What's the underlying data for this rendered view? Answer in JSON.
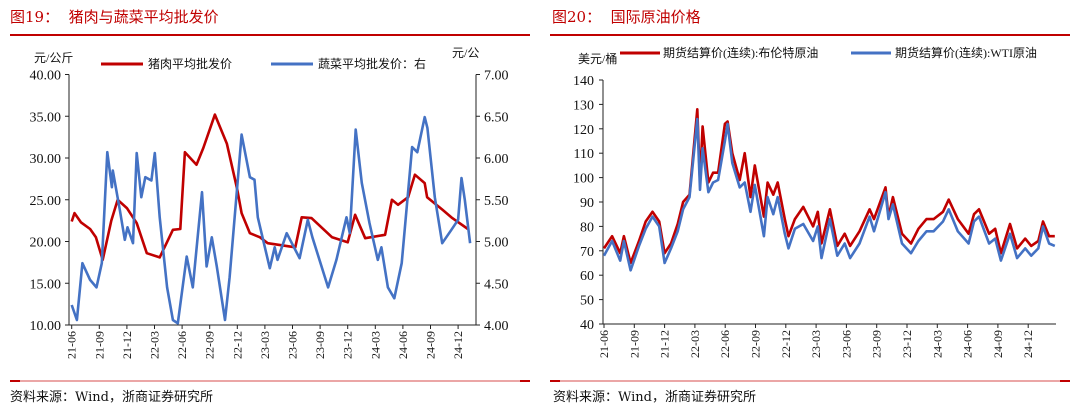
{
  "figures": [
    {
      "title": "图19：  猪肉与蔬菜平均批发价",
      "source": "资料来源：Wind，浙商证券研究所"
    },
    {
      "title": "图20：  国际原油价格",
      "source": "资料来源：Wind，浙商证券研究所"
    }
  ],
  "colors": {
    "title": "#C00000",
    "red_series": "#C00000",
    "blue_series": "#4472C4"
  },
  "chart_data": [
    {
      "type": "line",
      "title": "猪肉与蔬菜平均批发价",
      "ylabel_left": "元/公斤",
      "ylabel_right": "元/公",
      "ylim_left": [
        10,
        40
      ],
      "ylim_right": [
        4,
        7
      ],
      "yticks_left": [
        "40.00",
        "35.00",
        "30.00",
        "25.00",
        "20.00",
        "15.00",
        "10.00"
      ],
      "yticks_right": [
        "7.00",
        "6.50",
        "6.00",
        "5.50",
        "5.00",
        "4.50",
        "4.00"
      ],
      "xticks": [
        "21-06",
        "21-09",
        "21-12",
        "22-03",
        "22-06",
        "22-09",
        "22-12",
        "23-03",
        "23-06",
        "23-09",
        "23-12",
        "24-03",
        "24-06",
        "24-09",
        "24-12"
      ],
      "grid": false,
      "legend": "top",
      "series": [
        {
          "name": "猪肉平均批发价",
          "axis": "left",
          "color": "#C00000",
          "x": [
            "2021-06-01",
            "2021-06-10",
            "2021-07-01",
            "2021-08-01",
            "2021-08-20",
            "2021-09-12",
            "2021-10-10",
            "2021-11-01",
            "2021-12-01",
            "2022-01-03",
            "2022-02-06",
            "2022-03-18",
            "2022-05-01",
            "2022-05-25",
            "2022-06-10",
            "2022-07-18",
            "2022-08-10",
            "2022-09-18",
            "2022-10-27",
            "2022-12-01",
            "2022-12-15",
            "2023-01-12",
            "2023-02-15",
            "2023-03-10",
            "2023-06-10",
            "2023-07-01",
            "2023-08-03",
            "2023-10-10",
            "2023-12-01",
            "2023-12-25",
            "2024-01-28",
            "2024-04-03",
            "2024-04-25",
            "2024-05-15",
            "2024-06-18",
            "2024-07-10",
            "2024-08-12",
            "2024-08-20",
            "2024-10-10",
            "2024-11-12",
            "2025-01-03"
          ],
          "y": [
            22.4,
            23.4,
            22.3,
            21.5,
            20.5,
            17.8,
            22.5,
            25.0,
            24.0,
            22.2,
            18.6,
            18.1,
            21.4,
            21.5,
            30.7,
            29.2,
            31.2,
            35.2,
            31.7,
            26.2,
            23.4,
            21.0,
            20.5,
            19.8,
            19.3,
            22.9,
            22.8,
            20.5,
            19.9,
            23.2,
            20.4,
            20.8,
            25.0,
            24.4,
            25.3,
            28.0,
            27.0,
            25.3,
            23.8,
            22.8,
            21.5
          ]
        },
        {
          "name": "蔬菜平均批发价：右",
          "axis": "right",
          "color": "#4472C4",
          "x": [
            "2021-06-01",
            "2021-06-18",
            "2021-07-06",
            "2021-08-01",
            "2021-08-22",
            "2021-09-09",
            "2021-09-27",
            "2021-10-12",
            "2021-10-15",
            "2021-11-08",
            "2021-11-24",
            "2021-12-03",
            "2021-12-21",
            "2022-01-03",
            "2022-01-18",
            "2022-02-01",
            "2022-02-21",
            "2022-03-02",
            "2022-03-18",
            "2022-04-12",
            "2022-05-01",
            "2022-05-17",
            "2022-06-16",
            "2022-07-06",
            "2022-08-06",
            "2022-08-21",
            "2022-09-08",
            "2022-09-24",
            "2022-10-21",
            "2022-11-06",
            "2022-12-15",
            "2023-01-12",
            "2023-01-27",
            "2023-02-08",
            "2023-03-17",
            "2023-04-03",
            "2023-04-12",
            "2023-05-12",
            "2023-06-24",
            "2023-07-21",
            "2023-08-06",
            "2023-09-27",
            "2023-10-24",
            "2023-11-27",
            "2023-12-08",
            "2023-12-27",
            "2024-01-17",
            "2024-02-12",
            "2024-03-09",
            "2024-03-21",
            "2024-04-12",
            "2024-05-03",
            "2024-05-27",
            "2024-07-01",
            "2024-07-18",
            "2024-08-12",
            "2024-08-21",
            "2024-09-15",
            "2024-10-09",
            "2024-11-09",
            "2024-12-01",
            "2024-12-12",
            "2024-12-23",
            "2025-01-10"
          ],
          "y": [
            4.24,
            4.06,
            4.74,
            4.54,
            4.45,
            4.74,
            6.07,
            5.65,
            5.85,
            5.38,
            5.02,
            5.17,
            4.98,
            6.06,
            5.53,
            5.77,
            5.73,
            6.06,
            5.29,
            4.45,
            4.06,
            4.02,
            4.82,
            4.45,
            5.59,
            4.7,
            5.05,
            4.7,
            4.06,
            4.57,
            6.28,
            5.77,
            5.74,
            5.29,
            4.68,
            4.93,
            4.78,
            5.1,
            4.8,
            5.26,
            5.05,
            4.45,
            4.78,
            5.29,
            5.1,
            6.34,
            5.7,
            5.22,
            4.78,
            4.93,
            4.45,
            4.32,
            4.74,
            6.13,
            6.07,
            6.49,
            6.36,
            5.53,
            4.98,
            5.14,
            5.26,
            5.76,
            5.5,
            4.98
          ]
        }
      ]
    },
    {
      "type": "line",
      "title": "国际原油价格",
      "ylabel": "美元/桶",
      "ylim": [
        40,
        140
      ],
      "yticks": [
        "140",
        "130",
        "120",
        "110",
        "100",
        "90",
        "80",
        "70",
        "60",
        "50",
        "40"
      ],
      "xticks": [
        "21-06",
        "21-09",
        "21-12",
        "22-03",
        "22-06",
        "22-09",
        "22-12",
        "23-03",
        "23-06",
        "23-09",
        "23-12",
        "24-03",
        "24-06",
        "24-09",
        "24-12"
      ],
      "grid": false,
      "legend": "top",
      "x": [
        "2021-06-01",
        "2021-06-25",
        "2021-07-19",
        "2021-07-30",
        "2021-08-20",
        "2021-09-15",
        "2021-10-05",
        "2021-10-25",
        "2021-11-15",
        "2021-12-01",
        "2021-12-20",
        "2022-01-10",
        "2022-01-26",
        "2022-02-15",
        "2022-03-08",
        "2022-03-16",
        "2022-03-24",
        "2022-04-11",
        "2022-04-25",
        "2022-05-10",
        "2022-05-30",
        "2022-06-08",
        "2022-06-22",
        "2022-07-14",
        "2022-07-29",
        "2022-08-16",
        "2022-08-29",
        "2022-09-26",
        "2022-10-07",
        "2022-10-24",
        "2022-11-07",
        "2022-11-28",
        "2022-12-09",
        "2022-12-28",
        "2023-01-23",
        "2023-02-22",
        "2023-03-06",
        "2023-03-17",
        "2023-04-12",
        "2023-05-04",
        "2023-05-26",
        "2023-06-12",
        "2023-07-10",
        "2023-08-10",
        "2023-08-23",
        "2023-09-27",
        "2023-10-06",
        "2023-10-19",
        "2023-11-16",
        "2023-12-13",
        "2024-01-05",
        "2024-01-29",
        "2024-02-20",
        "2024-03-18",
        "2024-04-05",
        "2024-05-02",
        "2024-06-04",
        "2024-06-20",
        "2024-07-05",
        "2024-08-05",
        "2024-08-23",
        "2024-09-10",
        "2024-10-07",
        "2024-10-28",
        "2024-11-22",
        "2024-12-10",
        "2024-12-31",
        "2025-01-15",
        "2025-02-03",
        "2025-02-20"
      ],
      "series": [
        {
          "name": "期货结算价(连续):布伦特原油",
          "color": "#C00000",
          "y": [
            71,
            76,
            69,
            76,
            65,
            74,
            82,
            86,
            82,
            69,
            73,
            81,
            90,
            93,
            128,
            98,
            121,
            98,
            102,
            102,
            122,
            123,
            110,
            99,
            110,
            92,
            105,
            84,
            98,
            93,
            98,
            83,
            76,
            83,
            88,
            80,
            86,
            73,
            87,
            72,
            77,
            72,
            78,
            87,
            83,
            96,
            84,
            92,
            77,
            73,
            79,
            83,
            83,
            86,
            91,
            83,
            77,
            85,
            87,
            77,
            79,
            69,
            81,
            71,
            75,
            72,
            74,
            82,
            76,
            76
          ]
        },
        {
          "name": "期货结算价(连续):WTI原油",
          "color": "#4472C4",
          "y": [
            68,
            74,
            66,
            74,
            62,
            72,
            79,
            84,
            80,
            65,
            71,
            78,
            87,
            92,
            124,
            95,
            112,
            94,
            98,
            99,
            115,
            122,
            106,
            96,
            98,
            86,
            97,
            76,
            92,
            85,
            92,
            77,
            71,
            79,
            81,
            74,
            80,
            67,
            83,
            68,
            73,
            67,
            73,
            84,
            78,
            94,
            83,
            89,
            73,
            69,
            74,
            78,
            78,
            82,
            87,
            78,
            73,
            82,
            84,
            73,
            75,
            66,
            77,
            67,
            71,
            68,
            71,
            80,
            73,
            72
          ]
        }
      ]
    }
  ]
}
